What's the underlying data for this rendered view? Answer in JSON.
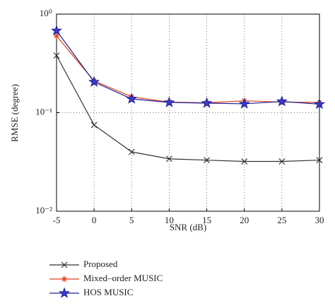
{
  "chart_data": {
    "type": "line",
    "x_label": "SNR (dB)",
    "y_label": "RMSE (degree)",
    "x": [
      -5,
      0,
      5,
      10,
      15,
      20,
      25,
      30
    ],
    "xlim": [
      -5,
      30
    ],
    "xticks": [
      -5,
      0,
      5,
      10,
      15,
      20,
      25,
      30
    ],
    "ylim": [
      0.01,
      1
    ],
    "log_y": true,
    "yticks": [
      {
        "value": 0.01,
        "label": "10⁻²"
      },
      {
        "value": 0.1,
        "label": "10⁻¹"
      },
      {
        "value": 1,
        "label": "10⁰"
      }
    ],
    "grid": true,
    "series": [
      {
        "name": "Proposed",
        "color": "#333333",
        "marker": "x",
        "values": [
          0.38,
          0.075,
          0.04,
          0.034,
          0.033,
          0.032,
          0.032,
          0.033
        ]
      },
      {
        "name": "Mixed–order MUSIC",
        "color": "#e0401a",
        "marker": "asterisk",
        "values": [
          0.6,
          0.21,
          0.145,
          0.128,
          0.126,
          0.132,
          0.128,
          0.127
        ]
      },
      {
        "name": "HOS MUSIC",
        "color": "#1f1f8f",
        "marker": "star",
        "values": [
          0.68,
          0.205,
          0.138,
          0.127,
          0.125,
          0.123,
          0.13,
          0.122
        ]
      }
    ]
  }
}
